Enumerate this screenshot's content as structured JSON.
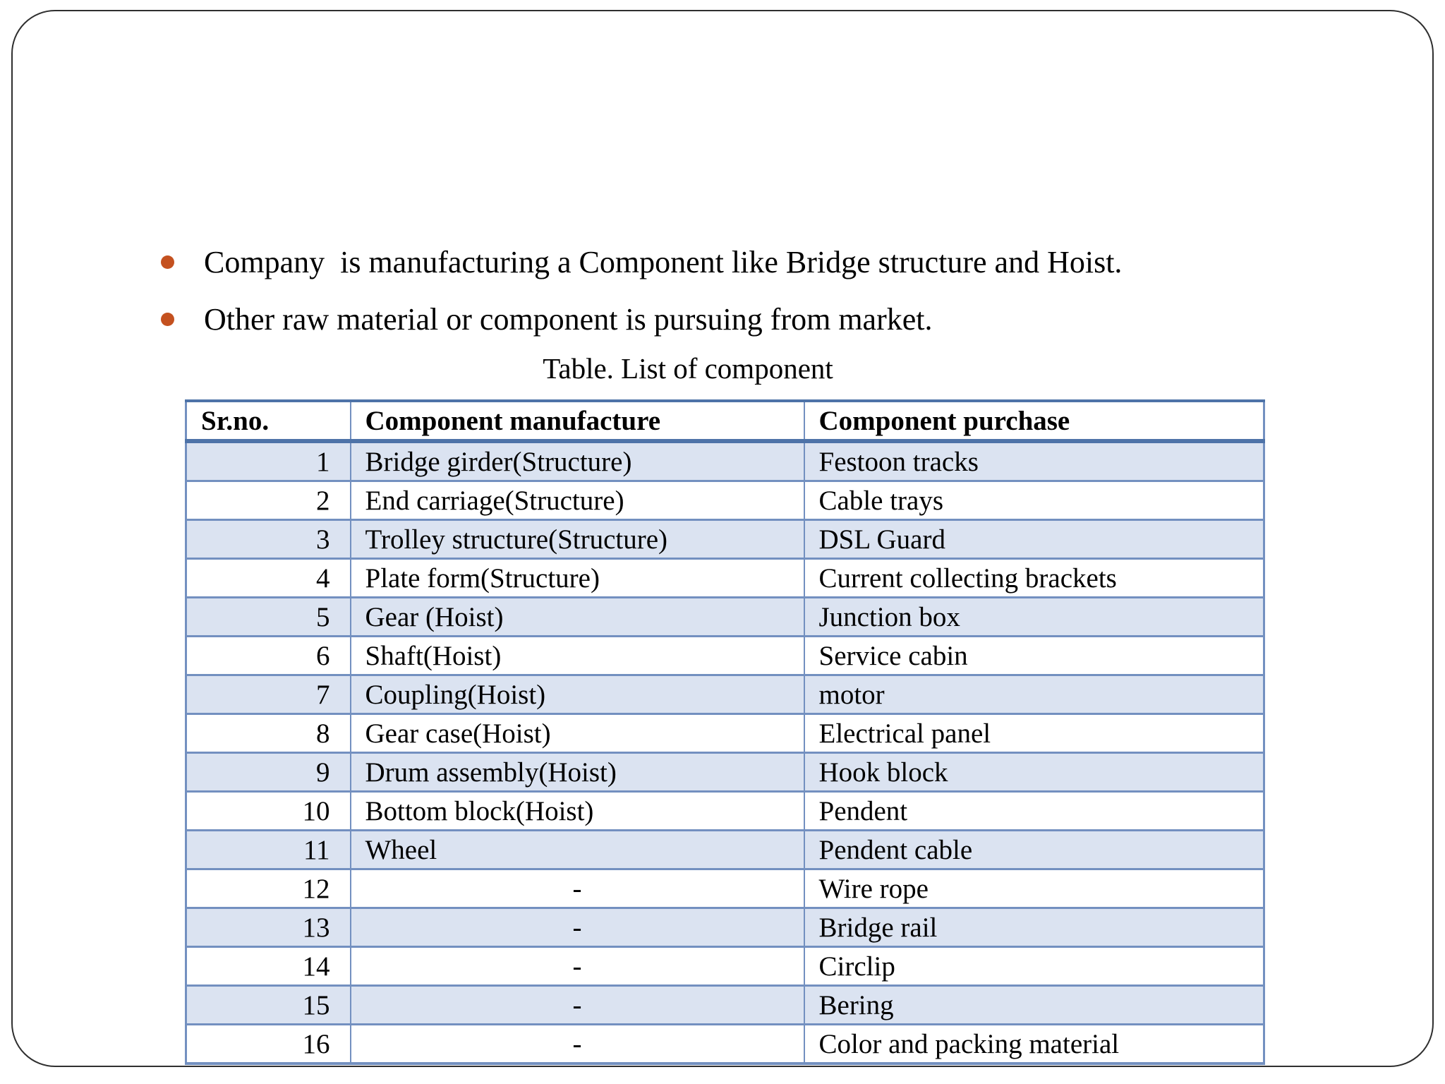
{
  "slide": {
    "bullets": [
      "Company  is manufacturing a Component like Bridge structure and Hoist.",
      "Other raw material or component is pursuing from market."
    ],
    "table_title": "Table. List of component",
    "table": {
      "headers": [
        "Sr.no.",
        "Component manufacture",
        "Component purchase"
      ],
      "rows": [
        [
          "1",
          "Bridge girder(Structure)",
          "Festoon tracks"
        ],
        [
          "2",
          "End carriage(Structure)",
          "Cable trays"
        ],
        [
          "3",
          "Trolley structure(Structure)",
          "DSL Guard"
        ],
        [
          "4",
          "Plate form(Structure)",
          "Current collecting brackets"
        ],
        [
          "5",
          "Gear (Hoist)",
          "Junction box"
        ],
        [
          "6",
          "Shaft(Hoist)",
          "Service cabin"
        ],
        [
          "7",
          "Coupling(Hoist)",
          "motor"
        ],
        [
          "8",
          "Gear case(Hoist)",
          "Electrical panel"
        ],
        [
          "9",
          "Drum assembly(Hoist)",
          "Hook block"
        ],
        [
          "10",
          "Bottom block(Hoist)",
          "Pendent"
        ],
        [
          "11",
          "Wheel",
          "Pendent cable"
        ],
        [
          "12",
          "-",
          "Wire rope"
        ],
        [
          "13",
          "-",
          "Bridge rail"
        ],
        [
          "14",
          "-",
          "Circlip"
        ],
        [
          "15",
          "-",
          "Bering"
        ],
        [
          "16",
          "-",
          "Color and packing material"
        ]
      ]
    },
    "colors": {
      "bullet": "#c4511f",
      "table_border": "#7390c0",
      "table_border_dark": "#4e73a8",
      "row_shade": "#dbe3f1",
      "frame_border": "#2f2f2f",
      "text": "#000000"
    }
  }
}
